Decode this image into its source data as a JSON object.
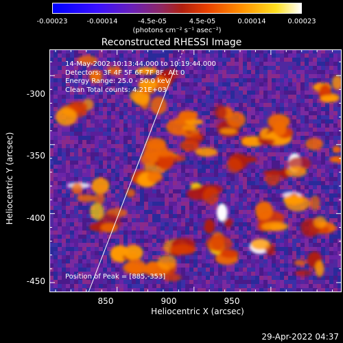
{
  "colorbar": {
    "tick_labels": [
      "-0.00023",
      "-0.00014",
      "-4.5e-05",
      "4.5e-05",
      "0.00014",
      "0.00023"
    ],
    "unit": "(photons cm⁻² s⁻¹ asec⁻²)",
    "colormap": [
      "#0000ff",
      "#2a00ff",
      "#6a1fb0",
      "#8e2b7a",
      "#b0241e",
      "#e84800",
      "#ff9a00",
      "#ffe000",
      "#ffffff"
    ]
  },
  "title": "Reconstructed RHESSI Image",
  "annotation": {
    "time_range": "14-May-2002 10:13:44.000 to 10:19:44.000",
    "detectors": "Detectors: 3F 4F 5F 6F 7F 8F, Att 0",
    "energy": "Energy Range: 25.0 - 50.0 keV",
    "method": "Clean     Total counts: 4.21E+03"
  },
  "peak": "Position of Peak = [885,-353]",
  "axes": {
    "xlabel": "Heliocentric X (arcsec)",
    "ylabel": "Heliocentric Y (arcsec)",
    "x_ticks": [
      "850",
      "900",
      "950"
    ],
    "y_ticks": [
      "-300",
      "-350",
      "-400",
      "-450"
    ],
    "x_range": [
      806,
      996
    ],
    "y_range": [
      -457,
      -281
    ]
  },
  "date_stamp": "29-Apr-2022 04:37"
}
